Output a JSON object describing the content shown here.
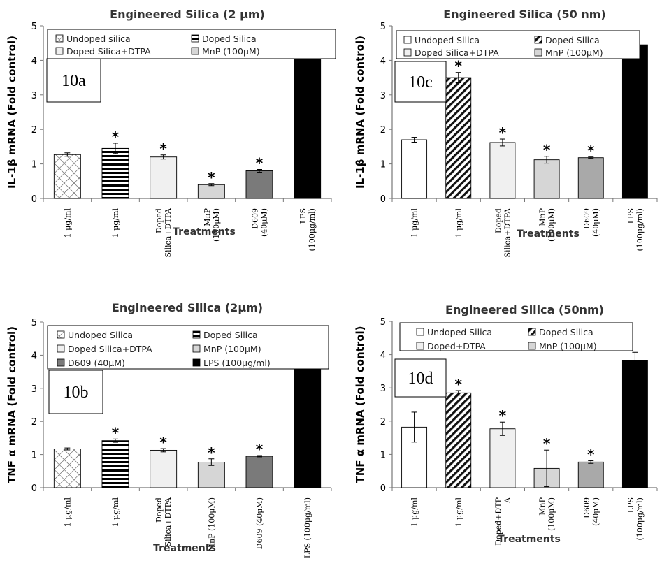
{
  "chart_data": [
    {
      "type": "bar",
      "panel_label": "10a",
      "title": "Engineered Silica (2 μm)",
      "ylabel": "IL-1β mRNA (Fold control)",
      "xlabel": "Treatments",
      "ylim": [
        0,
        5
      ],
      "yticks": [
        0,
        1,
        2,
        3,
        4,
        5
      ],
      "grid": false,
      "legend_position": "top",
      "categories": [
        [
          "1 μg/ml"
        ],
        [
          "1 μg/ml"
        ],
        [
          "Doped",
          "Silica+DTPA"
        ],
        [
          "MnP",
          "(100μM)"
        ],
        [
          "D609",
          "(40μM)"
        ],
        [
          "LPS",
          "(100μg/ml)"
        ]
      ],
      "values": [
        1.27,
        1.45,
        1.2,
        0.4,
        0.8,
        4.45
      ],
      "errors": [
        0.05,
        0.15,
        0.06,
        0.03,
        0.04,
        0.37
      ],
      "significant": [
        false,
        true,
        true,
        true,
        true,
        false
      ],
      "patterns": [
        "crosshatch",
        "hstripes",
        "light",
        "medium",
        "dark",
        "black"
      ],
      "legend": [
        {
          "label": "Undoped silica",
          "pattern": "crosshatch"
        },
        {
          "label": "Doped Silica",
          "pattern": "hstripes"
        },
        {
          "label": "Doped Silica+DTPA",
          "pattern": "light"
        },
        {
          "label": "MnP (100μM)",
          "pattern": "medium"
        }
      ]
    },
    {
      "type": "bar",
      "panel_label": "10c",
      "title": "Engineered Silica (50 nm)",
      "ylabel": "IL-1β mRNA (Fold control)",
      "xlabel": "Treatments",
      "ylim": [
        0,
        5
      ],
      "yticks": [
        0,
        1,
        2,
        3,
        4,
        5
      ],
      "grid": false,
      "legend_position": "top",
      "categories": [
        [
          "1 μg/ml"
        ],
        [
          "1 μg/ml"
        ],
        [
          "Doped",
          "Silica+DTPA"
        ],
        [
          "MnP",
          "(100μM)"
        ],
        [
          "D609",
          "(40μM)"
        ],
        [
          "LPS",
          "(100μg/ml)"
        ]
      ],
      "values": [
        1.7,
        3.5,
        1.62,
        1.12,
        1.18,
        4.45
      ],
      "errors": [
        0.07,
        0.15,
        0.1,
        0.1,
        0.02,
        0.37
      ],
      "significant": [
        false,
        true,
        true,
        true,
        true,
        false
      ],
      "patterns": [
        "white",
        "diag",
        "light",
        "medium",
        "medium2",
        "black"
      ],
      "legend": [
        {
          "label": "Undoped Silica",
          "pattern": "white"
        },
        {
          "label": "Doped Silica",
          "pattern": "diag"
        },
        {
          "label": "Doped Silica+DTPA",
          "pattern": "light"
        },
        {
          "label": "MnP (100μM)",
          "pattern": "medium"
        }
      ]
    },
    {
      "type": "bar",
      "panel_label": "10b",
      "title": "Engineered Silica (2μm)",
      "ylabel": "TNF α mRNA (Fold control)",
      "xlabel": "Treatments",
      "ylim": [
        0,
        5
      ],
      "yticks": [
        0,
        1,
        2,
        3,
        4,
        5
      ],
      "grid": false,
      "legend_position": "top",
      "categories": [
        [
          "1 μg/ml"
        ],
        [
          "1 μg/ml"
        ],
        [
          "Doped",
          "Silica+DTPA"
        ],
        [
          "MnP (100μM)"
        ],
        [
          "D609 (40μM)"
        ],
        [
          "LPS (100μg/ml)"
        ]
      ],
      "values": [
        1.17,
        1.42,
        1.13,
        0.77,
        0.95,
        3.82
      ],
      "errors": [
        0.03,
        0.05,
        0.05,
        0.1,
        0.02,
        0.25
      ],
      "significant": [
        false,
        true,
        true,
        true,
        true,
        false
      ],
      "patterns": [
        "crosshatch",
        "hstripes",
        "light",
        "medium",
        "dark",
        "black"
      ],
      "legend": [
        {
          "label": "Undoped Silica",
          "pattern": "crosshatch"
        },
        {
          "label": "Doped Silica",
          "pattern": "hstripes"
        },
        {
          "label": "Doped Silica+DTPA",
          "pattern": "light"
        },
        {
          "label": "MnP (100μM)",
          "pattern": "medium"
        },
        {
          "label": "D609 (40μM)",
          "pattern": "dark"
        },
        {
          "label": "LPS (100μg/ml)",
          "pattern": "black"
        }
      ]
    },
    {
      "type": "bar",
      "panel_label": "10d",
      "title": "Engineered Silica (50nm)",
      "ylabel": "TNF α mRNA (Fold control)",
      "xlabel": "Treatments",
      "ylim": [
        0,
        5
      ],
      "yticks": [
        0,
        1,
        2,
        3,
        4,
        5
      ],
      "grid": false,
      "legend_position": "top",
      "categories": [
        [
          "1 μg/ml"
        ],
        [
          "1 μg/ml"
        ],
        [
          "Doped+DTP",
          "A"
        ],
        [
          "MnP",
          "(100μM)"
        ],
        [
          "D609",
          "(40μM)"
        ],
        [
          "LPS",
          "(100μg/ml)"
        ]
      ],
      "values": [
        1.82,
        2.85,
        1.77,
        0.58,
        0.77,
        3.82
      ],
      "errors": [
        0.45,
        0.07,
        0.2,
        0.55,
        0.04,
        0.25
      ],
      "significant": [
        false,
        true,
        true,
        true,
        true,
        false
      ],
      "patterns": [
        "white",
        "diag",
        "light",
        "medium",
        "medium2",
        "black"
      ],
      "legend": [
        {
          "label": "Undoped Silica",
          "pattern": "white"
        },
        {
          "label": "Doped Silica",
          "pattern": "diag"
        },
        {
          "label": "Doped+DTPA",
          "pattern": "light"
        },
        {
          "label": "MnP (100μM)",
          "pattern": "medium"
        }
      ]
    }
  ],
  "significance_marker": "*",
  "colors": {
    "light": "#f0f0f0",
    "medium": "#d6d6d6",
    "medium2": "#a9a9a9",
    "dark": "#7a7a7a",
    "black": "#000000",
    "white": "#ffffff"
  }
}
